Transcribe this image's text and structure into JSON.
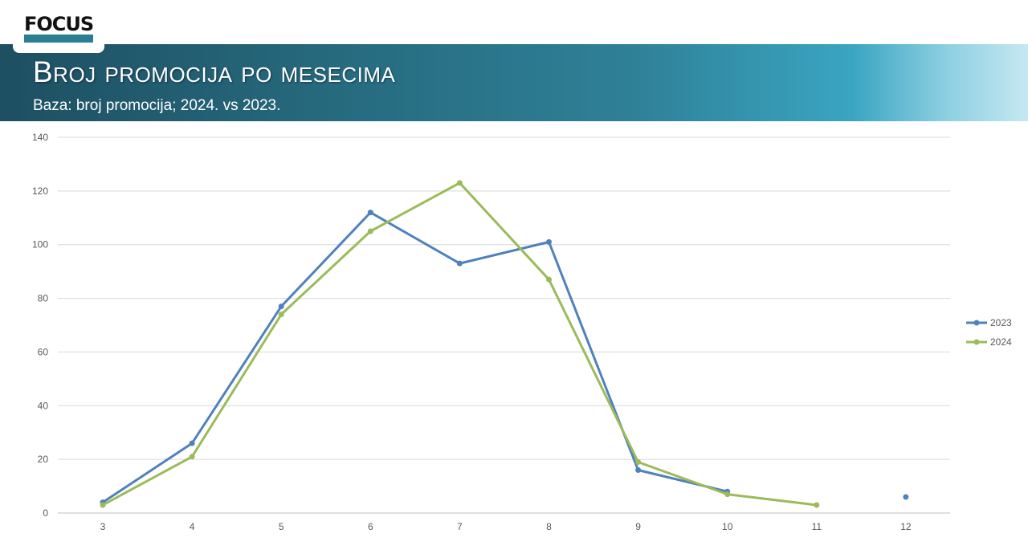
{
  "header": {
    "logo_text": "FOCUS",
    "title": "Broj promocija po mesecima",
    "subtitle": "Baza: broj promocija; 2024. vs 2023."
  },
  "chart_data": {
    "type": "line",
    "x": [
      3,
      4,
      5,
      6,
      7,
      8,
      9,
      10,
      11,
      12
    ],
    "series": [
      {
        "name": "2023",
        "color": "#4f81bd",
        "values": [
          4,
          26,
          77,
          112,
          93,
          101,
          16,
          8,
          null,
          6
        ]
      },
      {
        "name": "2024",
        "color": "#9bbb59",
        "values": [
          3,
          21,
          74,
          105,
          123,
          87,
          19,
          7,
          3,
          null
        ]
      }
    ],
    "yticks": [
      0,
      20,
      40,
      60,
      80,
      100,
      120,
      140
    ],
    "ylim": [
      0,
      140
    ],
    "grid": true,
    "legend": "right"
  }
}
